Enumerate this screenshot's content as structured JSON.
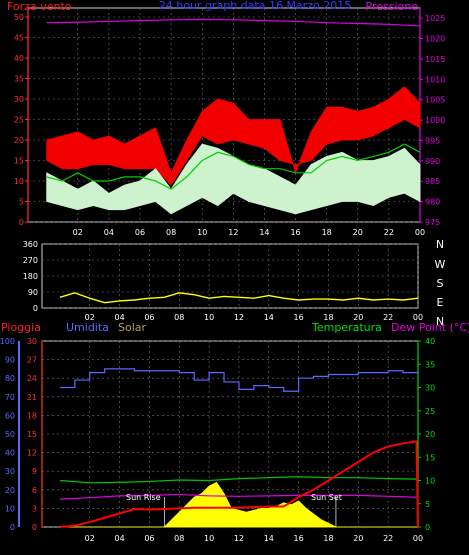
{
  "chart_data": [
    {
      "type": "line",
      "panel": "wind-pressure",
      "title": "24 hour graph data  16 Marzo 2015",
      "left_axis_label": "Forza vento",
      "right_axis_label": "Pressione",
      "x_ticks": [
        "02",
        "04",
        "06",
        "08",
        "10",
        "12",
        "14",
        "16",
        "18",
        "20",
        "22",
        "00"
      ],
      "y_left_ticks": [
        "0",
        "5",
        "10",
        "15",
        "20",
        "25",
        "30",
        "35",
        "40",
        "45",
        "50"
      ],
      "y_right_ticks": [
        "975",
        "980",
        "985",
        "990",
        "995",
        "1000",
        "1005",
        "1010",
        "1015",
        "1020",
        "1025"
      ],
      "ylim_left": [
        0,
        50
      ],
      "ylim_right": [
        975,
        1027.5
      ],
      "x_range": [
        0,
        24
      ],
      "series": [
        {
          "color": "#e000e0",
          "axis": "right",
          "x": [
            0,
            2,
            4,
            6,
            8,
            10,
            12,
            14,
            16,
            18,
            20,
            22,
            24
          ],
          "values": [
            1023.9,
            1024.0,
            1024.2,
            1024.4,
            1024.6,
            1024.7,
            1024.6,
            1024.4,
            1024.2,
            1023.9,
            1023.7,
            1023.5,
            1023.1
          ]
        },
        {
          "color": "#ff0000",
          "axis": "left",
          "style": "band",
          "x": [
            0,
            1,
            2,
            3,
            4,
            5,
            6,
            7,
            8,
            9,
            10,
            11,
            12,
            13,
            14,
            15,
            16,
            17,
            18,
            19,
            20,
            21,
            22,
            23,
            24
          ],
          "low": [
            15,
            13,
            13,
            14,
            14,
            13,
            13,
            13,
            9,
            15,
            21,
            19,
            20,
            19,
            18,
            15,
            14,
            15,
            19,
            20,
            20,
            21,
            23,
            25,
            23
          ],
          "values": [
            20,
            21,
            22,
            20,
            21,
            19,
            21,
            23,
            12,
            20,
            27,
            30,
            29,
            25,
            25,
            25,
            12,
            22,
            28,
            28,
            27,
            28,
            30,
            33,
            29
          ]
        },
        {
          "color": "#d8ffd8",
          "axis": "left",
          "style": "band",
          "x": [
            0,
            1,
            2,
            3,
            4,
            5,
            6,
            7,
            8,
            9,
            10,
            11,
            12,
            13,
            14,
            15,
            16,
            17,
            18,
            19,
            20,
            21,
            22,
            23,
            24
          ],
          "low": [
            5,
            4,
            3,
            4,
            3,
            3,
            4,
            5,
            2,
            4,
            6,
            4,
            7,
            5,
            4,
            3,
            2,
            3,
            4,
            5,
            5,
            4,
            6,
            7,
            5
          ],
          "values": [
            12,
            10,
            8,
            10,
            7,
            9,
            10,
            13,
            8,
            14,
            19,
            18,
            16,
            14,
            13,
            11,
            9,
            14,
            16,
            17,
            15,
            15,
            16,
            18,
            14
          ]
        },
        {
          "color": "#00d000",
          "axis": "left",
          "x": [
            0,
            1,
            2,
            3,
            4,
            5,
            6,
            7,
            8,
            9,
            10,
            11,
            12,
            13,
            14,
            15,
            16,
            17,
            18,
            19,
            20,
            21,
            22,
            23,
            24
          ],
          "values": [
            11,
            10,
            12,
            10,
            10,
            11,
            11,
            10,
            8,
            11,
            15,
            17,
            16,
            14,
            13,
            13,
            12,
            12,
            15,
            16,
            15,
            16,
            17,
            19,
            17
          ]
        }
      ]
    },
    {
      "type": "line",
      "panel": "wind-direction",
      "x_ticks": [
        "02",
        "04",
        "06",
        "08",
        "10",
        "12",
        "14",
        "16",
        "18",
        "20",
        "22",
        "00"
      ],
      "y_ticks": [
        "0",
        "90",
        "180",
        "270",
        "360"
      ],
      "compass_labels": [
        "N",
        "W",
        "S",
        "E",
        "N"
      ],
      "ylim": [
        0,
        360
      ],
      "x_range": [
        0,
        24
      ],
      "series": [
        {
          "color": "#ffff00",
          "x": [
            0,
            1,
            2,
            3,
            4,
            5,
            6,
            7,
            8,
            9,
            10,
            11,
            12,
            13,
            14,
            15,
            16,
            17,
            18,
            19,
            20,
            21,
            22,
            23,
            24
          ],
          "values": [
            60,
            85,
            55,
            30,
            40,
            45,
            55,
            60,
            85,
            75,
            55,
            65,
            60,
            55,
            70,
            55,
            45,
            50,
            50,
            45,
            55,
            45,
            50,
            45,
            55
          ]
        }
      ]
    },
    {
      "type": "line",
      "panel": "rain-humidity-solar-temperature",
      "left_labels": [
        "Pioggia",
        "Umidita",
        "Solar"
      ],
      "right_labels": [
        "Temperatura",
        "Dew Point (°C)"
      ],
      "annotations": [
        "Sun Rise",
        "Sun Set"
      ],
      "x_ticks": [
        "02",
        "04",
        "06",
        "08",
        "10",
        "12",
        "14",
        "16",
        "18",
        "20",
        "22",
        "00"
      ],
      "y_humidity_ticks": [
        "0",
        "10",
        "20",
        "30",
        "40",
        "50",
        "60",
        "70",
        "80",
        "90",
        "100"
      ],
      "y_rain_ticks": [
        "0",
        "3",
        "6",
        "9",
        "12",
        "15",
        "18",
        "21",
        "24",
        "27",
        "30"
      ],
      "y_temp_ticks": [
        "0",
        "5",
        "10",
        "15",
        "20",
        "25",
        "30",
        "35",
        "40"
      ],
      "ylim_humidity": [
        0,
        100
      ],
      "ylim_temp": [
        0,
        40
      ],
      "x_range": [
        0,
        24
      ],
      "series": [
        {
          "name": "Umidita",
          "color": "#5a6aff",
          "x": [
            0,
            1,
            2,
            3,
            4,
            5,
            6,
            7,
            8,
            9,
            10,
            11,
            12,
            13,
            14,
            15,
            16,
            17,
            18,
            19,
            20,
            21,
            22,
            23,
            24
          ],
          "values": [
            75,
            79,
            83,
            85,
            85,
            84,
            84,
            84,
            83,
            79,
            83,
            78,
            74,
            76,
            75,
            73,
            80,
            81,
            82,
            82,
            83,
            83,
            84,
            83,
            84
          ]
        },
        {
          "name": "Temperatura",
          "color": "#00c800",
          "x": [
            0,
            2,
            4,
            6,
            8,
            10,
            12,
            14,
            16,
            18,
            20,
            22,
            24
          ],
          "values": [
            10.0,
            9.5,
            9.6,
            9.8,
            10.1,
            10.0,
            10.4,
            10.6,
            10.8,
            10.6,
            10.6,
            10.4,
            10.3
          ]
        },
        {
          "name": "Dew Point (°C)",
          "color": "#e000e0",
          "x": [
            0,
            2,
            4,
            6,
            8,
            10,
            12,
            14,
            16,
            18,
            20,
            22,
            24
          ],
          "values": [
            6.0,
            6.3,
            6.7,
            6.8,
            7.0,
            6.7,
            6.6,
            6.7,
            6.8,
            6.8,
            6.8,
            6.6,
            6.4
          ]
        },
        {
          "name": "Pioggia",
          "color": "#ff0000",
          "x": [
            0,
            1,
            2,
            3,
            4,
            5,
            6,
            7,
            8,
            9,
            10,
            11,
            12,
            13,
            14,
            15,
            16,
            17,
            18,
            19,
            20,
            21,
            22,
            23,
            23.9,
            24
          ],
          "values": [
            0,
            0.2,
            0.8,
            1.5,
            2.2,
            2.9,
            2.8,
            2.9,
            3.0,
            3.1,
            3.1,
            3.1,
            3.1,
            3.2,
            3.3,
            3.3,
            4.8,
            6.0,
            7.5,
            9.0,
            10.5,
            12.0,
            13.0,
            13.5,
            13.8,
            0
          ]
        },
        {
          "name": "Solar",
          "color": "#ffff00",
          "style": "area",
          "x": [
            0,
            7.0,
            7.5,
            8,
            8.5,
            9,
            9.5,
            10,
            10.5,
            11,
            11.5,
            12,
            12.5,
            13,
            13.5,
            14,
            14.5,
            15,
            15.5,
            16,
            16.5,
            17,
            17.5,
            18,
            18.5,
            24
          ],
          "values": [
            0,
            0,
            4,
            8,
            12,
            16,
            18,
            22,
            24,
            18,
            10,
            9,
            8,
            9,
            10,
            10,
            11,
            13,
            12,
            14,
            10,
            7,
            4,
            2,
            0,
            0
          ]
        }
      ]
    }
  ]
}
